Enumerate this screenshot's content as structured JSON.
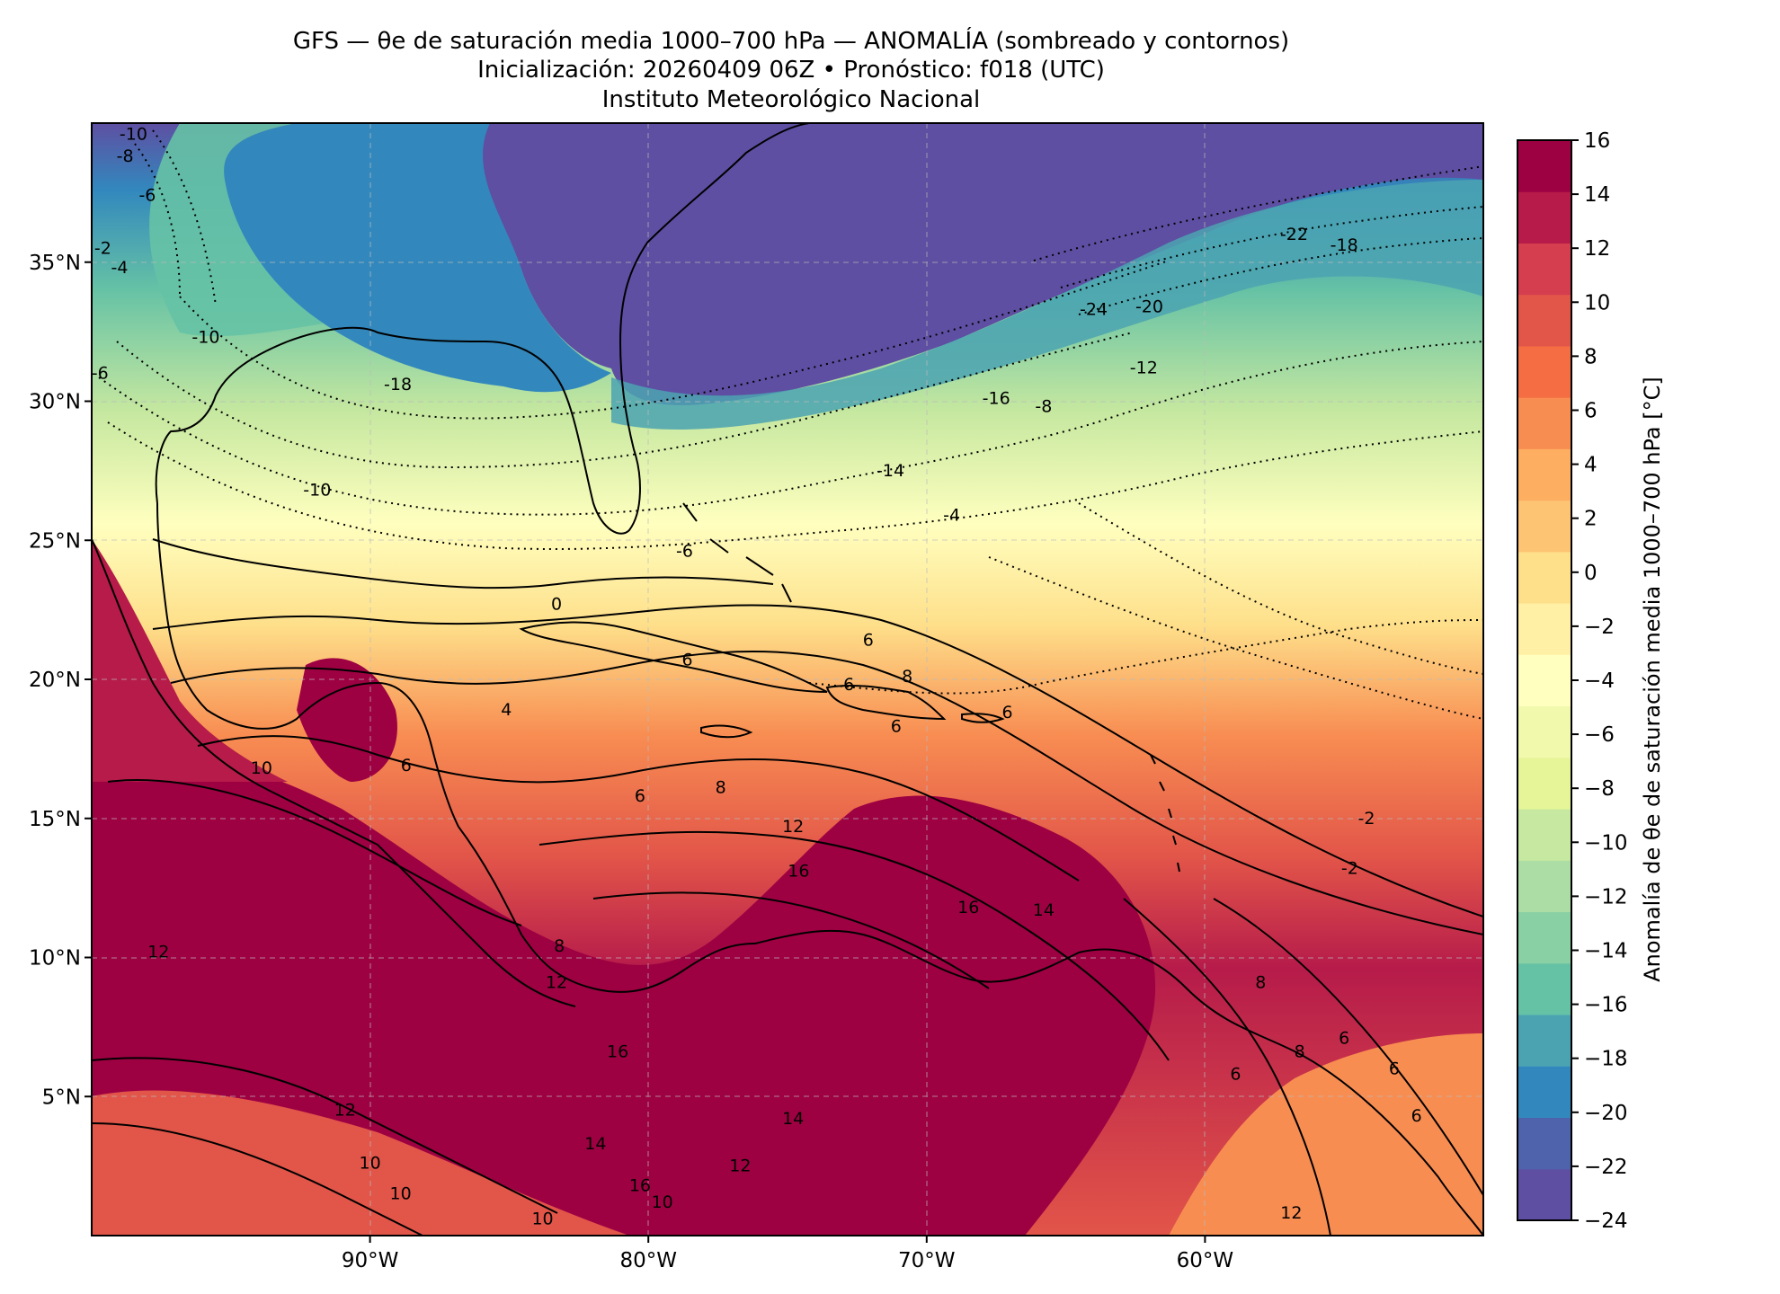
{
  "title": {
    "line1": "GFS — θe de saturación media 1000–700 hPa — ANOMALÍA (sombreado y contornos)",
    "line2": "Inicialización: 20260409 06Z   •   Pronóstico: f018 (UTC)",
    "line3": "Instituto Meteorológico Nacional"
  },
  "map": {
    "lon_range": [
      -100,
      -50
    ],
    "lat_range": [
      0,
      40
    ],
    "lon_ticks": [
      {
        "value": -90,
        "label": "90°W"
      },
      {
        "value": -80,
        "label": "80°W"
      },
      {
        "value": -70,
        "label": "70°W"
      },
      {
        "value": -60,
        "label": "60°W"
      }
    ],
    "lat_ticks": [
      {
        "value": 35,
        "label": "35°N"
      },
      {
        "value": 30,
        "label": "30°N"
      },
      {
        "value": 25,
        "label": "25°N"
      },
      {
        "value": 20,
        "label": "20°N"
      },
      {
        "value": 15,
        "label": "15°N"
      },
      {
        "value": 10,
        "label": "10°N"
      },
      {
        "value": 5,
        "label": "5°N"
      }
    ],
    "gridlines": true,
    "contour_labels": [
      {
        "text": "-10",
        "lon": -98.5,
        "lat": 39.6
      },
      {
        "text": "-8",
        "lon": -98.8,
        "lat": 38.8
      },
      {
        "text": "-6",
        "lon": -98.0,
        "lat": 37.4
      },
      {
        "text": "-4",
        "lon": -99.0,
        "lat": 34.8
      },
      {
        "text": "-2",
        "lon": -99.6,
        "lat": 35.5
      },
      {
        "text": "-10",
        "lon": -95.9,
        "lat": 32.3
      },
      {
        "text": "-6",
        "lon": -99.7,
        "lat": 31.0
      },
      {
        "text": "-18",
        "lon": -89.0,
        "lat": 30.6
      },
      {
        "text": "-10",
        "lon": -91.9,
        "lat": 26.8
      },
      {
        "text": "-14",
        "lon": -71.3,
        "lat": 27.5
      },
      {
        "text": "-4",
        "lon": -69.1,
        "lat": 25.9
      },
      {
        "text": "-6",
        "lon": -78.7,
        "lat": 24.6
      },
      {
        "text": "-24",
        "lon": -64.0,
        "lat": 33.3
      },
      {
        "text": "-20",
        "lon": -62.0,
        "lat": 33.4
      },
      {
        "text": "-22",
        "lon": -56.8,
        "lat": 36.0
      },
      {
        "text": "-18",
        "lon": -55.0,
        "lat": 35.6
      },
      {
        "text": "-16",
        "lon": -67.5,
        "lat": 30.1
      },
      {
        "text": "-12",
        "lon": -62.2,
        "lat": 31.2
      },
      {
        "text": "-8",
        "lon": -65.8,
        "lat": 29.8
      },
      {
        "text": "0",
        "lon": -83.3,
        "lat": 22.7
      },
      {
        "text": "6",
        "lon": -78.6,
        "lat": 20.7
      },
      {
        "text": "6",
        "lon": -72.1,
        "lat": 21.4
      },
      {
        "text": "6",
        "lon": -72.8,
        "lat": 19.8
      },
      {
        "text": "8",
        "lon": -70.7,
        "lat": 20.1
      },
      {
        "text": "6",
        "lon": -71.1,
        "lat": 18.3
      },
      {
        "text": "6",
        "lon": -67.1,
        "lat": 18.8
      },
      {
        "text": "-2",
        "lon": -54.2,
        "lat": 15.0
      },
      {
        "text": "-2",
        "lon": -54.8,
        "lat": 13.2
      },
      {
        "text": "10",
        "lon": -93.9,
        "lat": 16.8
      },
      {
        "text": "6",
        "lon": -88.7,
        "lat": 16.9
      },
      {
        "text": "4",
        "lon": -85.1,
        "lat": 18.9
      },
      {
        "text": "6",
        "lon": -80.3,
        "lat": 15.8
      },
      {
        "text": "8",
        "lon": -77.4,
        "lat": 16.1
      },
      {
        "text": "12",
        "lon": -74.8,
        "lat": 14.7
      },
      {
        "text": "16",
        "lon": -74.6,
        "lat": 13.1
      },
      {
        "text": "16",
        "lon": -68.5,
        "lat": 11.8
      },
      {
        "text": "14",
        "lon": -65.8,
        "lat": 11.7
      },
      {
        "text": "8",
        "lon": -83.2,
        "lat": 10.4
      },
      {
        "text": "12",
        "lon": -83.3,
        "lat": 9.1
      },
      {
        "text": "8",
        "lon": -58.0,
        "lat": 9.1
      },
      {
        "text": "12",
        "lon": -97.6,
        "lat": 10.2
      },
      {
        "text": "12",
        "lon": -90.9,
        "lat": 4.5
      },
      {
        "text": "16",
        "lon": -81.1,
        "lat": 6.6
      },
      {
        "text": "14",
        "lon": -81.9,
        "lat": 3.3
      },
      {
        "text": "10",
        "lon": -90.0,
        "lat": 2.6
      },
      {
        "text": "10",
        "lon": -88.9,
        "lat": 1.5
      },
      {
        "text": "10",
        "lon": -83.8,
        "lat": 0.6
      },
      {
        "text": "12",
        "lon": -76.7,
        "lat": 2.5
      },
      {
        "text": "16",
        "lon": -80.3,
        "lat": 1.8
      },
      {
        "text": "10",
        "lon": -79.5,
        "lat": 1.2
      },
      {
        "text": "6",
        "lon": -55.0,
        "lat": 7.1
      },
      {
        "text": "6",
        "lon": -53.2,
        "lat": 6.0
      },
      {
        "text": "6",
        "lon": -52.4,
        "lat": 4.3
      },
      {
        "text": "6",
        "lon": -58.9,
        "lat": 5.8
      },
      {
        "text": "12",
        "lon": -56.9,
        "lat": 0.8
      },
      {
        "text": "8",
        "lon": -56.6,
        "lat": 6.6
      },
      {
        "text": "14",
        "lon": -74.8,
        "lat": 4.2
      }
    ]
  },
  "colorbar": {
    "label": "Anomalía de θe de saturación media 1000–700 hPa [°C]",
    "levels": [
      -24,
      -22,
      -20,
      -18,
      -16,
      -14,
      -12,
      -10,
      -8,
      -6,
      -4,
      -2,
      0,
      2,
      4,
      6,
      8,
      10,
      12,
      14,
      16
    ],
    "tick_labels": [
      "−24",
      "−22",
      "−20",
      "−18",
      "−16",
      "−14",
      "−12",
      "−10",
      "−8",
      "−6",
      "−4",
      "−2",
      "0",
      "2",
      "4",
      "6",
      "8",
      "10",
      "12",
      "14",
      "16"
    ],
    "colors": [
      "#5e4fa2",
      "#4e63ab",
      "#3288bd",
      "#4ba3b2",
      "#66c2a5",
      "#89d0a4",
      "#abdda4",
      "#c6e8a0",
      "#e6f598",
      "#f1f9ac",
      "#ffffbf",
      "#fff0a6",
      "#fee08b",
      "#fdc473",
      "#fdae61",
      "#f88d52",
      "#f46d43",
      "#e25549",
      "#d53e4f",
      "#b61b4a",
      "#9e0142"
    ]
  },
  "field_notes": {
    "cold_anomaly_north": -24,
    "warm_anomaly_south": 16
  }
}
